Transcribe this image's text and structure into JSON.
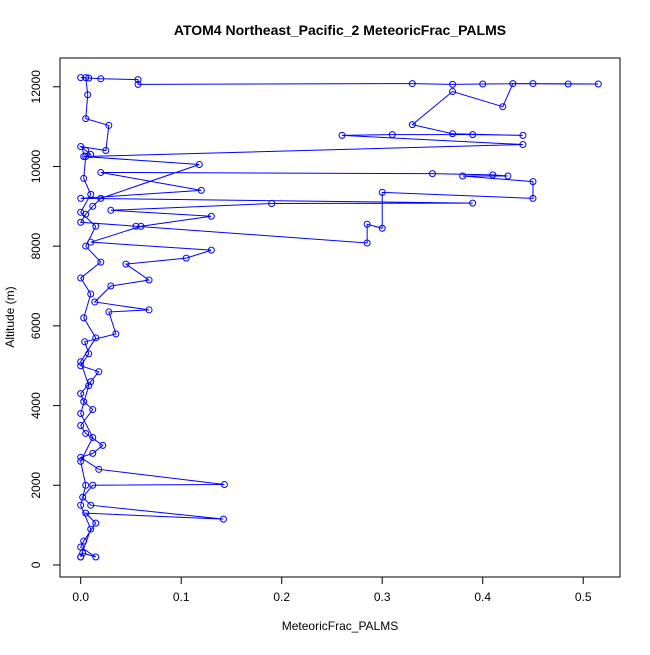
{
  "chart_data": {
    "type": "scatter-line",
    "title": "ATOM4 Northeast_Pacific_2 MeteoricFrac_PALMS",
    "xlabel": "MeteoricFrac_PALMS",
    "ylabel": "Altitude (m)",
    "color": "#0000ff",
    "x": [
      0.0,
      0.002,
      0.015,
      0.0,
      0.003,
      0.015,
      0.005,
      0.142,
      0.01,
      0.002,
      0.012,
      0.143,
      0.018,
      0.0,
      0.012,
      0.022,
      0.005,
      0.0,
      0.012,
      0.003,
      0.0,
      0.01,
      0.018,
      0.0,
      0.008,
      0.004,
      0.035,
      0.028,
      0.068,
      0.014,
      0.03,
      0.068,
      0.045,
      0.105,
      0.13,
      0.01,
      0.06,
      0.13,
      0.03,
      0.19,
      0.39,
      0.0,
      0.12,
      0.02,
      0.35,
      0.41,
      0.425,
      0.38,
      0.45,
      0.45,
      0.3,
      0.3,
      0.285,
      0.285,
      0.055,
      0.0,
      0.005,
      0.012,
      0.02,
      0.118,
      0.003,
      0.01,
      0.005,
      0.0,
      0.025,
      0.028,
      0.005,
      0.007,
      0.005,
      0.0,
      0.008,
      0.02,
      0.057,
      0.057,
      0.33,
      0.37,
      0.4,
      0.45,
      0.515,
      0.485,
      0.43,
      0.42,
      0.37,
      0.33,
      0.37,
      0.44,
      0.39,
      0.31,
      0.26,
      0.44,
      0.005,
      0.003,
      0.01,
      0.0,
      0.015,
      0.005,
      0.02,
      0.0,
      0.01,
      0.003,
      0.015,
      0.0,
      0.008,
      0.0,
      0.012,
      0.0,
      0.005,
      0.0,
      0.01,
      0.0
    ],
    "values": [
      200,
      300,
      200,
      450,
      600,
      1050,
      1300,
      1150,
      1500,
      1700,
      2000,
      2020,
      2400,
      2700,
      2800,
      3000,
      3300,
      3500,
      3900,
      4100,
      4300,
      4600,
      4850,
      5000,
      5300,
      5600,
      5800,
      6350,
      6400,
      6600,
      7000,
      7150,
      7550,
      7700,
      7900,
      8100,
      8500,
      8750,
      8900,
      9070,
      9080,
      9200,
      9400,
      9850,
      9820,
      9790,
      9760,
      9760,
      9620,
      9200,
      9350,
      8450,
      8550,
      8080,
      8500,
      8600,
      8800,
      9000,
      9200,
      10050,
      10250,
      10300,
      10400,
      10500,
      10400,
      11030,
      11200,
      11800,
      12230,
      12230,
      12220,
      12200,
      12180,
      12060,
      12080,
      12060,
      12070,
      12080,
      12070,
      12070,
      12080,
      11500,
      11880,
      11050,
      10820,
      10780,
      10800,
      10800,
      10780,
      10550,
      10250,
      9700,
      9300,
      8850,
      8500,
      8000,
      7600,
      7200,
      6800,
      6200,
      5700,
      5100,
      4500,
      3800,
      3200,
      2600,
      2000,
      1500,
      900,
      200
    ],
    "xlim": [
      -0.0206,
      0.5366
    ],
    "ylim": [
      -302,
      12722
    ],
    "xticks": [
      {
        "value": 0,
        "label": "0.0"
      },
      {
        "value": 0.1,
        "label": "0.1"
      },
      {
        "value": 0.2,
        "label": "0.2"
      },
      {
        "value": 0.3,
        "label": "0.3"
      },
      {
        "value": 0.4,
        "label": "0.4"
      },
      {
        "value": 0.5,
        "label": "0.5"
      }
    ],
    "yticks": [
      0,
      2000,
      4000,
      6000,
      8000,
      10000,
      12000
    ]
  }
}
